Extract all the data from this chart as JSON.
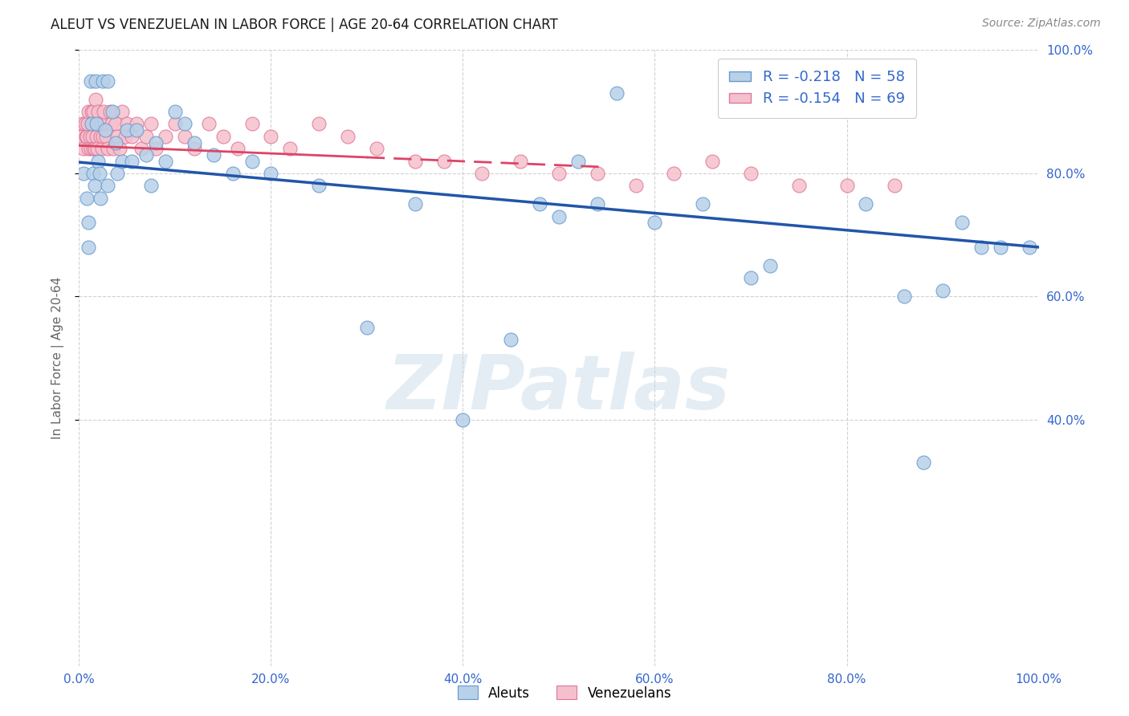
{
  "title": "ALEUT VS VENEZUELAN IN LABOR FORCE | AGE 20-64 CORRELATION CHART",
  "source": "Source: ZipAtlas.com",
  "ylabel": "In Labor Force | Age 20-64",
  "x_min": 0.0,
  "x_max": 1.0,
  "y_min": 0.0,
  "y_max": 1.0,
  "y_ticks": [
    0.4,
    0.6,
    0.8,
    1.0
  ],
  "x_ticks": [
    0.0,
    0.2,
    0.4,
    0.6,
    0.8,
    1.0
  ],
  "aleut_R": -0.218,
  "aleut_N": 58,
  "venezuelan_R": -0.154,
  "venezuelan_N": 69,
  "aleut_color": "#b8d0e8",
  "aleut_edge_color": "#6699cc",
  "aleut_line_color": "#2255aa",
  "venezuelan_color": "#f5c0cc",
  "venezuelan_edge_color": "#dd7799",
  "venezuelan_line_color": "#dd4466",
  "watermark": "ZIPatlas",
  "grid_color": "#cccccc",
  "right_tick_color": "#3366cc",
  "bottom_tick_color": "#3366cc",
  "aleut_x": [
    0.005,
    0.008,
    0.01,
    0.01,
    0.012,
    0.013,
    0.015,
    0.016,
    0.017,
    0.018,
    0.02,
    0.021,
    0.022,
    0.025,
    0.027,
    0.03,
    0.03,
    0.035,
    0.038,
    0.04,
    0.045,
    0.05,
    0.055,
    0.06,
    0.07,
    0.075,
    0.08,
    0.09,
    0.1,
    0.11,
    0.12,
    0.14,
    0.16,
    0.18,
    0.2,
    0.25,
    0.3,
    0.35,
    0.4,
    0.45,
    0.48,
    0.5,
    0.52,
    0.54,
    0.56,
    0.6,
    0.65,
    0.7,
    0.72,
    0.78,
    0.82,
    0.86,
    0.88,
    0.9,
    0.92,
    0.94,
    0.96,
    0.99
  ],
  "aleut_y": [
    0.8,
    0.76,
    0.72,
    0.68,
    0.95,
    0.88,
    0.8,
    0.78,
    0.95,
    0.88,
    0.82,
    0.8,
    0.76,
    0.95,
    0.87,
    0.95,
    0.78,
    0.9,
    0.85,
    0.8,
    0.82,
    0.87,
    0.82,
    0.87,
    0.83,
    0.78,
    0.85,
    0.82,
    0.9,
    0.88,
    0.85,
    0.83,
    0.8,
    0.82,
    0.8,
    0.78,
    0.55,
    0.75,
    0.4,
    0.53,
    0.75,
    0.73,
    0.82,
    0.75,
    0.93,
    0.72,
    0.75,
    0.63,
    0.65,
    0.95,
    0.75,
    0.6,
    0.33,
    0.61,
    0.72,
    0.68,
    0.68,
    0.68
  ],
  "venezuelan_x": [
    0.003,
    0.004,
    0.005,
    0.006,
    0.007,
    0.008,
    0.009,
    0.01,
    0.01,
    0.011,
    0.012,
    0.013,
    0.014,
    0.015,
    0.015,
    0.016,
    0.017,
    0.018,
    0.019,
    0.02,
    0.021,
    0.022,
    0.023,
    0.024,
    0.025,
    0.026,
    0.028,
    0.03,
    0.032,
    0.034,
    0.036,
    0.038,
    0.04,
    0.042,
    0.045,
    0.048,
    0.05,
    0.055,
    0.06,
    0.065,
    0.07,
    0.075,
    0.08,
    0.09,
    0.1,
    0.11,
    0.12,
    0.135,
    0.15,
    0.165,
    0.18,
    0.2,
    0.22,
    0.25,
    0.28,
    0.31,
    0.35,
    0.38,
    0.42,
    0.46,
    0.5,
    0.54,
    0.58,
    0.62,
    0.66,
    0.7,
    0.75,
    0.8,
    0.85
  ],
  "venezuelan_y": [
    0.86,
    0.88,
    0.84,
    0.88,
    0.86,
    0.86,
    0.88,
    0.84,
    0.9,
    0.86,
    0.84,
    0.9,
    0.86,
    0.84,
    0.9,
    0.84,
    0.92,
    0.86,
    0.84,
    0.9,
    0.88,
    0.86,
    0.88,
    0.84,
    0.86,
    0.9,
    0.86,
    0.84,
    0.9,
    0.88,
    0.84,
    0.88,
    0.86,
    0.84,
    0.9,
    0.86,
    0.88,
    0.86,
    0.88,
    0.84,
    0.86,
    0.88,
    0.84,
    0.86,
    0.88,
    0.86,
    0.84,
    0.88,
    0.86,
    0.84,
    0.88,
    0.86,
    0.84,
    0.88,
    0.86,
    0.84,
    0.82,
    0.82,
    0.8,
    0.82,
    0.8,
    0.8,
    0.78,
    0.8,
    0.82,
    0.8,
    0.78,
    0.78,
    0.78
  ]
}
